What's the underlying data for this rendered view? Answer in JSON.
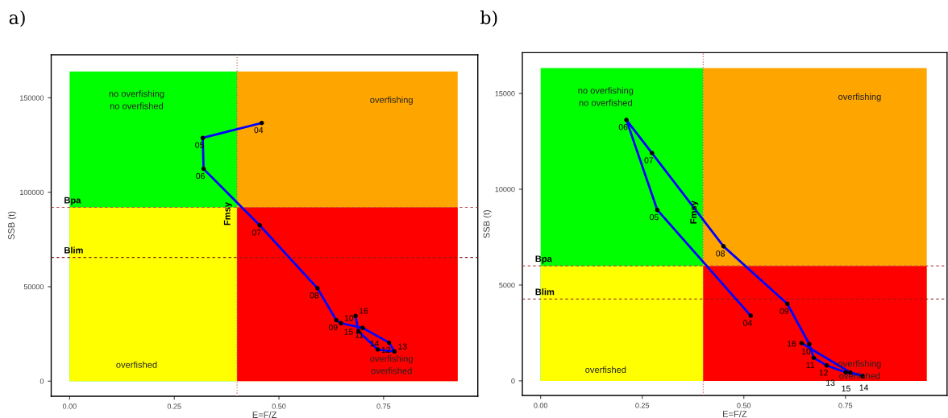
{
  "chart_data": [
    {
      "type": "line",
      "title": "a)",
      "xlabel": "E=F/Z",
      "ylabel": "SSB (t)",
      "xlim": [
        -0.044,
        0.975
      ],
      "ylim": [
        -8000,
        172800
      ],
      "xticks": [
        {
          "value": 0,
          "label": "0.00"
        },
        {
          "value": 0.25,
          "label": "0.25"
        },
        {
          "value": 0.5,
          "label": "0.50"
        },
        {
          "value": 0.75,
          "label": "0.75"
        }
      ],
      "yticks": [
        0,
        50000,
        100000,
        150000
      ],
      "grid": false,
      "series": [
        {
          "type": "area",
          "name": "no overfishing\nno overfished",
          "color": "#00ff00",
          "x": [
            0,
            0.4
          ],
          "values": [
            164000,
            164000
          ]
        },
        {
          "type": "area",
          "name": "overfishing",
          "color": "#ffa500",
          "x": [
            0.4,
            0.927
          ],
          "values": [
            164000,
            164000
          ]
        },
        {
          "type": "area",
          "name": "overfished",
          "color": "#ffff00",
          "x": [
            0,
            0.4
          ],
          "values": [
            92000,
            92000
          ]
        },
        {
          "type": "area",
          "name": "overfishing\noverfished",
          "color": "#ff0000",
          "x": [
            0.4,
            0.927
          ],
          "values": [
            92000,
            92000
          ]
        },
        {
          "color": "#0000ff",
          "marker": "circle",
          "line_style": "solid",
          "x": [
            0.459,
            0.318,
            0.32,
            0.454,
            0.592,
            0.637,
            0.648,
            0.7,
            0.763,
            0.776,
            0.736,
            0.69,
            0.683
          ],
          "values": [
            136700,
            128800,
            112400,
            82500,
            49200,
            32300,
            30700,
            28200,
            20400,
            15700,
            16700,
            26400,
            34500
          ]
        }
      ],
      "ref_lines": [
        {
          "axis": "x",
          "value": 0.4,
          "label": "Fmsy",
          "color": "#c0504d",
          "line_style": "dotted"
        },
        {
          "axis": "y",
          "value": 92000,
          "label": "Bpa",
          "color": "#c0504d",
          "line_style": "dashed"
        },
        {
          "axis": "y",
          "value": 65500,
          "label": "Blim",
          "color": "#8b1a1a",
          "line_style": "dashed"
        }
      ],
      "annotations": [
        {
          "text": "04",
          "x": 0.459,
          "y": 136700
        },
        {
          "text": "05",
          "x": 0.318,
          "y": 128800
        },
        {
          "text": "06",
          "x": 0.32,
          "y": 112400
        },
        {
          "text": "07",
          "x": 0.454,
          "y": 82500
        },
        {
          "text": "08",
          "x": 0.592,
          "y": 49200
        },
        {
          "text": "09",
          "x": 0.637,
          "y": 32300
        },
        {
          "text": "10",
          "x": 0.648,
          "y": 30700
        },
        {
          "text": "11",
          "x": 0.7,
          "y": 28200
        },
        {
          "text": "12",
          "x": 0.763,
          "y": 20400
        },
        {
          "text": "13",
          "x": 0.776,
          "y": 15700
        },
        {
          "text": "14",
          "x": 0.736,
          "y": 16700
        },
        {
          "text": "15",
          "x": 0.69,
          "y": 26400
        },
        {
          "text": "16",
          "x": 0.683,
          "y": 34500
        }
      ]
    },
    {
      "type": "line",
      "title": "b)",
      "xlabel": "E=F/Z",
      "ylabel": "SSB (t)",
      "xlim": [
        -0.045,
        1.0
      ],
      "ylim": [
        -760,
        17130
      ],
      "xticks": [
        {
          "value": 0,
          "label": "0.00"
        },
        {
          "value": 0.25,
          "label": "0.25"
        },
        {
          "value": 0.5,
          "label": "0.50"
        },
        {
          "value": 0.75,
          "label": "0.75"
        }
      ],
      "yticks": [
        0,
        5000,
        10000,
        15000
      ],
      "grid": false,
      "series": [
        {
          "type": "area",
          "name": "no overfishing\nno overfished",
          "color": "#00ff00",
          "x": [
            0,
            0.4
          ],
          "values": [
            16330,
            16330
          ]
        },
        {
          "type": "area",
          "name": "overfishing",
          "color": "#ffa500",
          "x": [
            0.4,
            0.95
          ],
          "values": [
            16330,
            16330
          ]
        },
        {
          "type": "area",
          "name": "overfished",
          "color": "#ffff00",
          "x": [
            0,
            0.4
          ],
          "values": [
            6000,
            6000
          ]
        },
        {
          "type": "area",
          "name": "overfishing\noverfished",
          "color": "#ff0000",
          "x": [
            0.4,
            0.95
          ],
          "values": [
            6000,
            6000
          ]
        },
        {
          "color": "#0000ff",
          "marker": "circle",
          "line_style": "solid",
          "x": [
            0.517,
            0.287,
            0.211,
            0.274,
            0.45,
            0.607,
            0.661,
            0.672,
            0.704,
            0.751,
            0.792,
            0.762,
            0.642
          ],
          "values": [
            3400,
            8920,
            13620,
            11890,
            7020,
            4020,
            1920,
            1200,
            800,
            450,
            260,
            440,
            1970
          ]
        }
      ],
      "ref_lines": [
        {
          "axis": "x",
          "value": 0.4,
          "label": "Fmsy",
          "color": "#c0504d",
          "line_style": "dotted"
        },
        {
          "axis": "y",
          "value": 6000,
          "label": "Bpa",
          "color": "#c0504d",
          "line_style": "dashed"
        },
        {
          "axis": "y",
          "value": 4270,
          "label": "Blim",
          "color": "#8b1a1a",
          "line_style": "dashed"
        }
      ],
      "annotations": [
        {
          "text": "04",
          "x": 0.517,
          "y": 3400
        },
        {
          "text": "05",
          "x": 0.287,
          "y": 8920
        },
        {
          "text": "06",
          "x": 0.211,
          "y": 13620
        },
        {
          "text": "07",
          "x": 0.274,
          "y": 11890
        },
        {
          "text": "08",
          "x": 0.45,
          "y": 7020
        },
        {
          "text": "09",
          "x": 0.607,
          "y": 4020
        },
        {
          "text": "10",
          "x": 0.661,
          "y": 1920
        },
        {
          "text": "11",
          "x": 0.672,
          "y": 1200
        },
        {
          "text": "12",
          "x": 0.704,
          "y": 800
        },
        {
          "text": "13",
          "x": 0.751,
          "y": 450
        },
        {
          "text": "14",
          "x": 0.792,
          "y": 260
        },
        {
          "text": "15",
          "x": 0.762,
          "y": 440
        },
        {
          "text": "16",
          "x": 0.642,
          "y": 1970
        }
      ]
    }
  ]
}
